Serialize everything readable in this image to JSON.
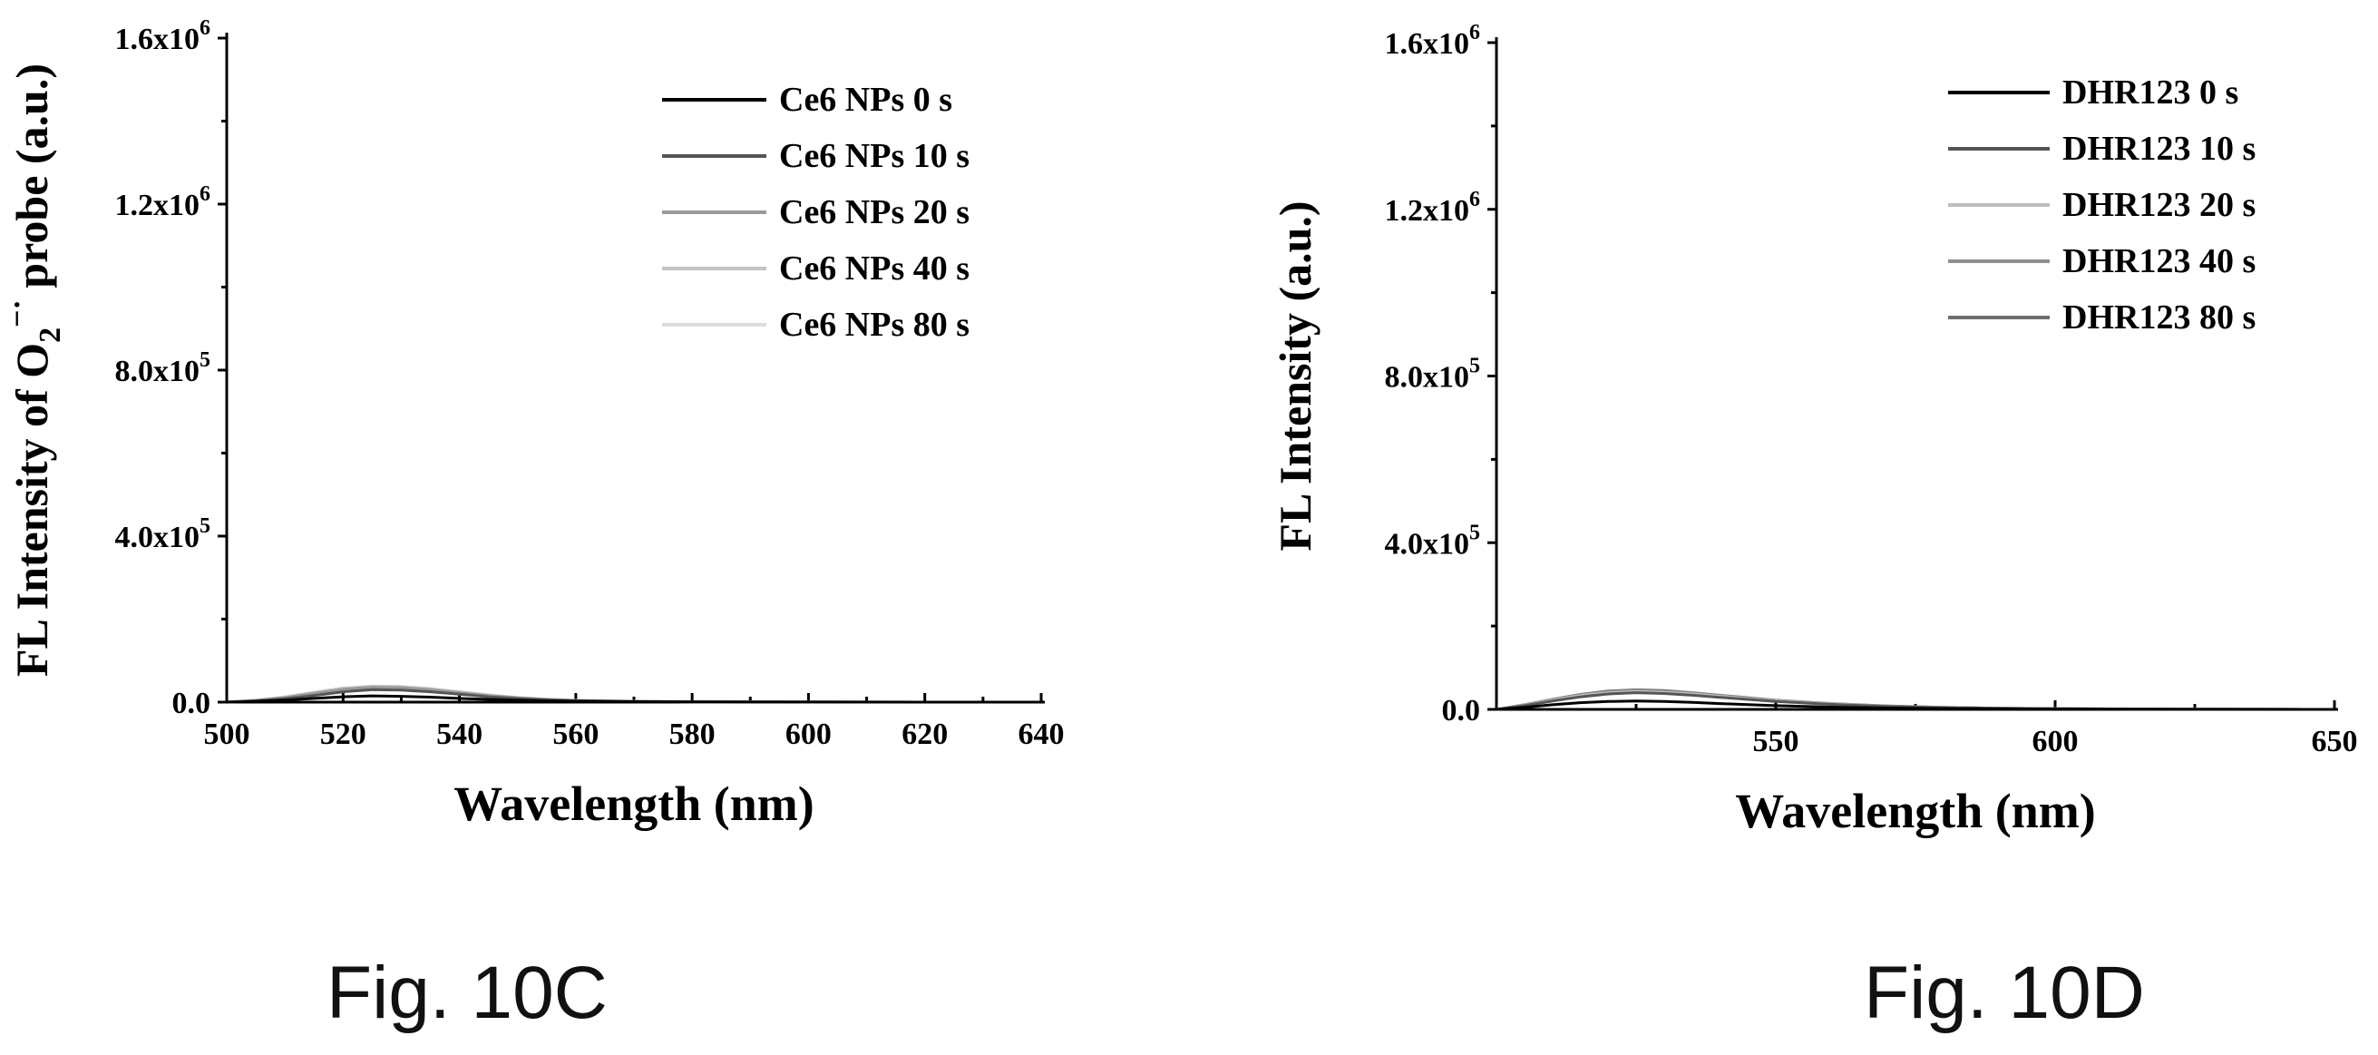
{
  "figures": [
    {
      "caption": "Fig. 10C"
    },
    {
      "caption": "Fig. 10D"
    }
  ],
  "chart_data": [
    {
      "type": "line",
      "title": "",
      "xlabel": "Wavelength (nm)",
      "ylabel_main": "FL Intensity of O",
      "ylabel_sub": "2",
      "ylabel_sup": "−·",
      "ylabel_end": " probe (a.u.)",
      "xlim": [
        500,
        640
      ],
      "ylim": [
        0,
        1600000
      ],
      "x_ticks": [
        500,
        520,
        540,
        560,
        580,
        600,
        620,
        640
      ],
      "x_tick_labels": [
        "500",
        "520",
        "540",
        "560",
        "580",
        "600",
        "620",
        "640"
      ],
      "y_ticks": [
        0,
        400000,
        800000,
        1200000,
        1600000
      ],
      "y_tick_labels": [
        {
          "base": "0.0",
          "exp": ""
        },
        {
          "base": "4.0x10",
          "exp": "5"
        },
        {
          "base": "8.0x10",
          "exp": "5"
        },
        {
          "base": "1.2x10",
          "exp": "6"
        },
        {
          "base": "1.6x10",
          "exp": "6"
        }
      ],
      "legend_position": "top-right",
      "grid": false,
      "x": [
        500,
        505,
        510,
        515,
        520,
        525,
        530,
        535,
        540,
        545,
        550,
        555,
        560,
        570,
        580,
        590,
        600,
        620,
        640
      ],
      "series": [
        {
          "name": "Ce6 NPs 0 s",
          "color": "#000000",
          "values": [
            0,
            2000,
            5000,
            9000,
            13000,
            15000,
            14000,
            12000,
            9000,
            6500,
            4500,
            3000,
            2000,
            1000,
            500,
            300,
            200,
            100,
            0
          ]
        },
        {
          "name": "Ce6 NPs 10 s",
          "color": "#555555",
          "values": [
            0,
            3000,
            8000,
            16000,
            25000,
            30000,
            29000,
            25000,
            19000,
            13000,
            8500,
            5500,
            3500,
            1500,
            800,
            500,
            300,
            100,
            0
          ]
        },
        {
          "name": "Ce6 NPs 20 s",
          "color": "#9a9a9a",
          "values": [
            0,
            4000,
            11000,
            21000,
            31000,
            36000,
            35000,
            30000,
            23000,
            16000,
            10500,
            6500,
            4000,
            1800,
            900,
            500,
            300,
            100,
            0
          ]
        },
        {
          "name": "Ce6 NPs 40 s",
          "color": "#c4c4c4",
          "values": [
            0,
            4500,
            12000,
            23000,
            33000,
            38000,
            37000,
            32000,
            24500,
            17000,
            11000,
            7000,
            4200,
            1900,
            900,
            500,
            300,
            100,
            0
          ]
        },
        {
          "name": "Ce6 NPs 80 s",
          "color": "#dcdcdc",
          "values": [
            0,
            5000,
            13000,
            24000,
            34000,
            39000,
            38000,
            33000,
            25000,
            17500,
            11500,
            7200,
            4300,
            2000,
            900,
            500,
            300,
            100,
            0
          ]
        }
      ]
    },
    {
      "type": "line",
      "title": "",
      "xlabel": "Wavelength (nm)",
      "ylabel": "FL Intensity (a.u.)",
      "xlim": [
        500,
        650
      ],
      "ylim": [
        0,
        1600000
      ],
      "x_ticks": [
        550,
        600,
        650
      ],
      "x_tick_labels": [
        "550",
        "600",
        "650"
      ],
      "y_ticks": [
        0,
        400000,
        800000,
        1200000,
        1600000
      ],
      "y_tick_labels": [
        {
          "base": "0.0",
          "exp": ""
        },
        {
          "base": "4.0x10",
          "exp": "5"
        },
        {
          "base": "8.0x10",
          "exp": "5"
        },
        {
          "base": "1.2x10",
          "exp": "6"
        },
        {
          "base": "1.6x10",
          "exp": "6"
        }
      ],
      "legend_position": "top-right",
      "grid": false,
      "x": [
        500,
        505,
        510,
        515,
        520,
        525,
        530,
        535,
        540,
        545,
        550,
        560,
        570,
        580,
        590,
        600,
        610,
        620,
        630,
        640,
        650
      ],
      "series": [
        {
          "name": "DHR123 0 s",
          "color": "#000000",
          "values": [
            0,
            5000,
            11000,
            16000,
            19000,
            20000,
            19000,
            17000,
            14000,
            11500,
            9000,
            5500,
            3200,
            2000,
            1200,
            800,
            500,
            300,
            200,
            100,
            0
          ]
        },
        {
          "name": "DHR123 10 s",
          "color": "#555555",
          "values": [
            0,
            9000,
            20000,
            30000,
            37000,
            40000,
            38000,
            34000,
            29000,
            24000,
            19000,
            12000,
            7000,
            4200,
            2500,
            1500,
            900,
            500,
            300,
            150,
            0
          ]
        },
        {
          "name": "DHR123 20 s",
          "color": "#bdbdbd",
          "values": [
            0,
            10000,
            22000,
            33000,
            40000,
            43000,
            41000,
            37000,
            31500,
            26000,
            20500,
            13000,
            7500,
            4500,
            2700,
            1600,
            1000,
            600,
            300,
            150,
            0
          ]
        },
        {
          "name": "DHR123 40 s",
          "color": "#8f8f8f",
          "values": [
            0,
            10500,
            23000,
            35000,
            42000,
            45000,
            43000,
            38500,
            33000,
            27000,
            21500,
            13500,
            8000,
            4800,
            2800,
            1700,
            1000,
            600,
            300,
            150,
            0
          ]
        },
        {
          "name": "DHR123 80 s",
          "color": "#6e6e6e",
          "values": [
            0,
            11000,
            24000,
            36000,
            44000,
            47000,
            45000,
            40000,
            34000,
            28000,
            22000,
            14000,
            8200,
            5000,
            2900,
            1800,
            1100,
            600,
            300,
            150,
            0
          ]
        }
      ]
    }
  ]
}
